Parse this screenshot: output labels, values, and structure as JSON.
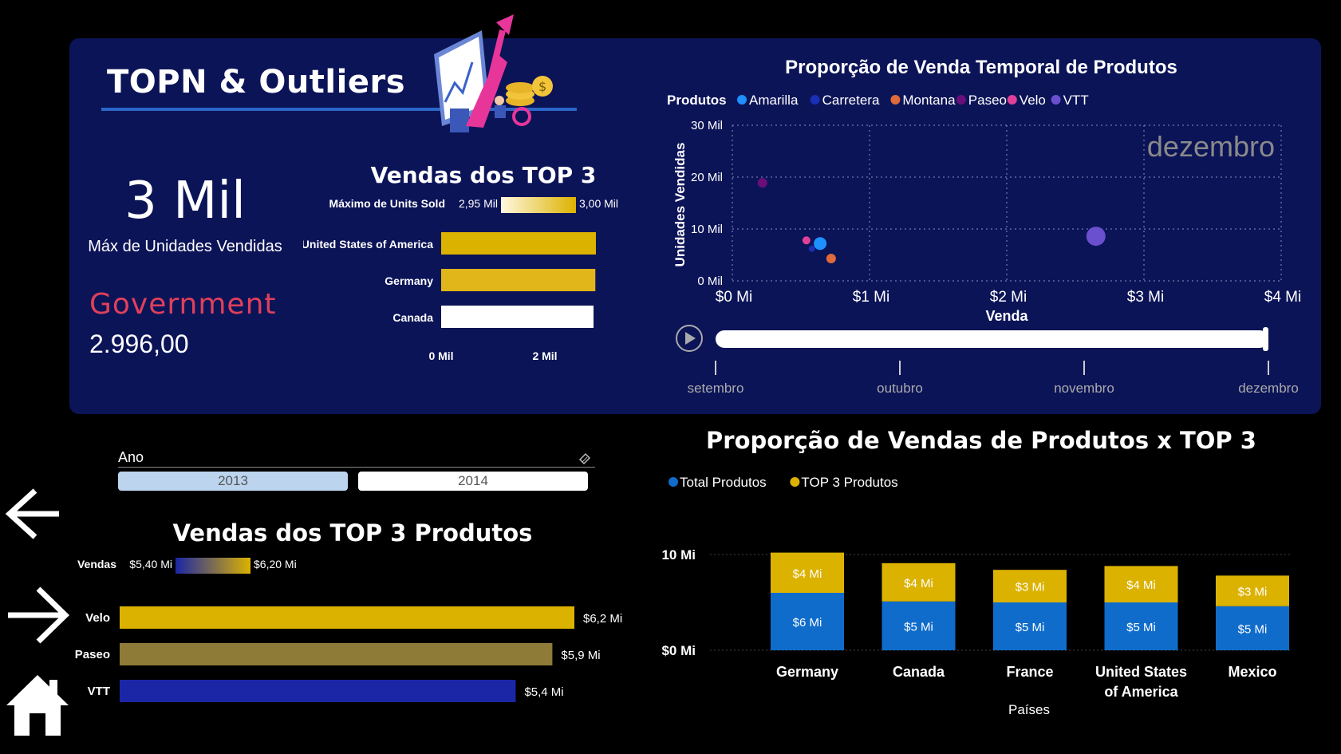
{
  "header": {
    "title": "TOPN & Outliers"
  },
  "kpi": {
    "value": "3 Mil",
    "label": "Máx de Unidades Vendidas",
    "outlier_segment": "Government",
    "outlier_value": "2.996,00"
  },
  "top3_countries": {
    "title": "Vendas dos TOP 3",
    "gradient_legend": {
      "label": "Máximo de Units Sold",
      "min": "2,95 Mil",
      "max": "3,00 Mil"
    },
    "x_ticks": [
      "0 Mil",
      "2 Mil"
    ]
  },
  "scatter": {
    "title": "Proporção de Venda Temporal de Produtos",
    "legend_label": "Produtos",
    "watermark": "dezembro",
    "play_axis": [
      "setembro",
      "outubro",
      "novembro",
      "dezembro"
    ]
  },
  "year_slicer": {
    "label": "Ano",
    "options": [
      "2013",
      "2014"
    ],
    "selected": "2013"
  },
  "top3_products": {
    "title": "Vendas dos TOP 3 Produtos",
    "gradient_legend": {
      "label": "Vendas",
      "min": "$5,40 Mi",
      "max": "$6,20 Mi"
    }
  },
  "stacked": {
    "title": "Proporção de Vendas de Produtos x TOP 3",
    "xlabel": "Países"
  },
  "nav": {
    "back_icon": "arrow-left-icon",
    "forward_icon": "arrow-right-icon",
    "home_icon": "home-icon"
  },
  "colors": {
    "panel": "#0c1458",
    "gold": "#dcb200",
    "blue": "#0f6ccb",
    "paseo_bar": "#8e7b38",
    "vtt_bar": "#1b26a6",
    "accent_red": "#e0405a"
  },
  "chart_data": [
    {
      "id": "top3-countries",
      "type": "bar",
      "orientation": "horizontal",
      "title": "Vendas dos TOP 3",
      "categories": [
        "United States of America",
        "Germany",
        "Canada"
      ],
      "values": [
        2996,
        2985,
        2950
      ],
      "xlim": [
        0,
        2996
      ],
      "x_ticks": [
        "0 Mil",
        "2 Mil"
      ]
    },
    {
      "id": "scatter-time",
      "type": "scatter",
      "title": "Proporção de Venda Temporal de Produtos",
      "xlabel": "Venda",
      "ylabel": "Unidades Vendidas",
      "xlim": [
        0,
        4000000
      ],
      "ylim": [
        0,
        30000
      ],
      "x_ticks": [
        "$0 Mi",
        "$1 Mi",
        "$2 Mi",
        "$3 Mi",
        "$4 Mi"
      ],
      "y_ticks": [
        "0 Mil",
        "10 Mil",
        "20 Mil",
        "30 Mil"
      ],
      "legend": "top-left",
      "series": [
        {
          "name": "Amarilla",
          "color": "#1e90ff",
          "points": [
            {
              "x": 640000,
              "y": 7200,
              "r": 8
            }
          ]
        },
        {
          "name": "Carretera",
          "color": "#1a2fb5",
          "points": [
            {
              "x": 580000,
              "y": 6200,
              "r": 4
            }
          ]
        },
        {
          "name": "Montana",
          "color": "#e06a3a",
          "points": [
            {
              "x": 720000,
              "y": 4300,
              "r": 6
            }
          ]
        },
        {
          "name": "Paseo",
          "color": "#6a0f7a",
          "points": [
            {
              "x": 220000,
              "y": 18900,
              "r": 6
            }
          ]
        },
        {
          "name": "Velo",
          "color": "#e0409a",
          "points": [
            {
              "x": 540000,
              "y": 7800,
              "r": 5
            }
          ]
        },
        {
          "name": "VTT",
          "color": "#6a4fcf",
          "points": [
            {
              "x": 2650000,
              "y": 8600,
              "r": 12
            }
          ]
        }
      ]
    },
    {
      "id": "top3-products",
      "type": "bar",
      "orientation": "horizontal",
      "title": "Vendas dos TOP 3 Produtos",
      "categories": [
        "Velo",
        "Paseo",
        "VTT"
      ],
      "values": [
        6.2,
        5.9,
        5.4
      ],
      "labels": [
        "$6,2 Mi",
        "$5,9 Mi",
        "$5,4 Mi"
      ],
      "colors": [
        "#dcb200",
        "#8e7b38",
        "#1b26a6"
      ],
      "xlim": [
        0,
        6.2
      ]
    },
    {
      "id": "stacked-countries",
      "type": "bar",
      "stacked": true,
      "title": "Proporção de Vendas de Produtos x TOP 3",
      "xlabel": "Países",
      "categories": [
        "Germany",
        "Canada",
        "France",
        "United States of America",
        "Mexico"
      ],
      "category_lines": [
        [
          "Germany"
        ],
        [
          "Canada"
        ],
        [
          "France"
        ],
        [
          "United States",
          "of America"
        ],
        [
          "Mexico"
        ]
      ],
      "y_ticks": [
        "$10 Mi",
        "$0 Mi"
      ],
      "ylim": [
        0,
        10
      ],
      "series": [
        {
          "name": "Total Produtos",
          "color": "#0f6ccb",
          "values": [
            6.0,
            5.1,
            5.0,
            5.0,
            4.6
          ],
          "labels": [
            "$6 Mi",
            "$5 Mi",
            "$5 Mi",
            "$5 Mi",
            "$5 Mi"
          ]
        },
        {
          "name": "TOP 3 Produtos",
          "color": "#dcb200",
          "values": [
            4.2,
            4.0,
            3.4,
            3.8,
            3.2
          ],
          "labels": [
            "$4 Mi",
            "$4 Mi",
            "$3 Mi",
            "$4 Mi",
            "$3 Mi"
          ]
        }
      ]
    }
  ]
}
